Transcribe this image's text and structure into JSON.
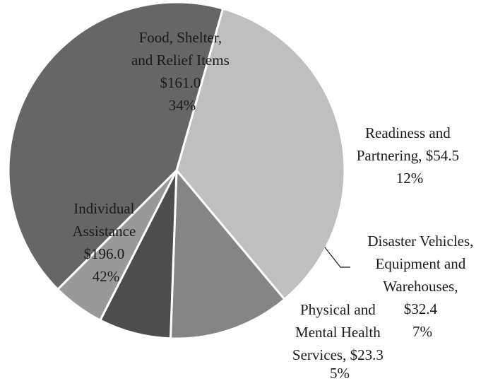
{
  "chart_data": {
    "type": "pie",
    "title": "",
    "slices": [
      {
        "label_lines": [
          "Food, Shelter,",
          "and Relief Items"
        ],
        "value_text": "$161.0",
        "percent_text": "34%",
        "value": 161.0,
        "color": "#bfbfbf"
      },
      {
        "label_lines": [
          "Readiness and",
          "Partnering, $54.5"
        ],
        "percent_text": "12%",
        "value": 54.5,
        "color": "#858585"
      },
      {
        "label_lines": [
          "Disaster Vehicles,",
          "Equipment and",
          "Warehouses,",
          "$32.4"
        ],
        "percent_text": "7%",
        "value": 32.4,
        "color": "#4d4d4d"
      },
      {
        "label_lines": [
          "Physical and",
          "Mental Health",
          "Services, $23.3"
        ],
        "percent_text": "5%",
        "value": 23.3,
        "color": "#999999"
      },
      {
        "label_lines": [
          "Individual",
          "Assistance"
        ],
        "value_text": "$196.0",
        "percent_text": "42%",
        "value": 196.0,
        "color": "#666666"
      }
    ]
  }
}
